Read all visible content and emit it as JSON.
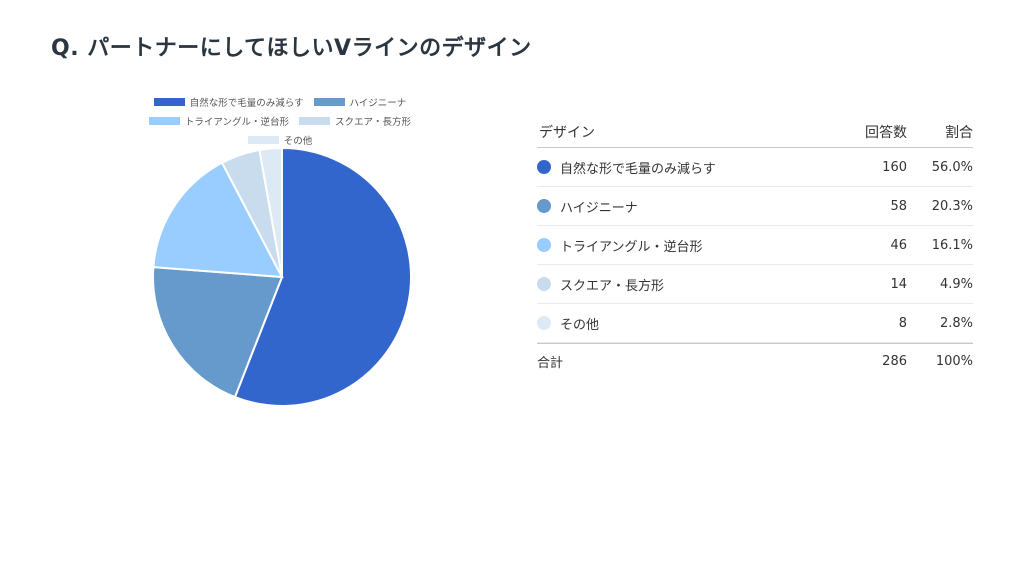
{
  "title": "Q. パートナーにしてほしいVラインのデザイン",
  "chart_data": {
    "type": "pie",
    "title": "",
    "categories": [
      "自然な形で毛量のみ減らす",
      "ハイジニーナ",
      "トライアングル・逆台形",
      "スクエア・長方形",
      "その他"
    ],
    "values": [
      160,
      58,
      46,
      14,
      8
    ],
    "percentages": [
      "56.0%",
      "20.3%",
      "16.1%",
      "4.9%",
      "2.8%"
    ],
    "colors": [
      "#3366cc",
      "#6699cc",
      "#99ccff",
      "#c8dcee",
      "#ddeaf6"
    ],
    "legend_position": "top"
  },
  "table": {
    "header": {
      "label": "デザイン",
      "count": "回答数",
      "pct": "割合"
    },
    "rows": [
      {
        "label": "自然な形で毛量のみ減らす",
        "count": "160",
        "pct": "56.0%",
        "color": "#3366cc"
      },
      {
        "label": "ハイジニーナ",
        "count": "58",
        "pct": "20.3%",
        "color": "#6699cc"
      },
      {
        "label": "トライアングル・逆台形",
        "count": "46",
        "pct": "16.1%",
        "color": "#99ccff"
      },
      {
        "label": "スクエア・長方形",
        "count": "14",
        "pct": "4.9%",
        "color": "#c8dcee"
      },
      {
        "label": "その他",
        "count": "8",
        "pct": "2.8%",
        "color": "#ddeaf6"
      }
    ],
    "total": {
      "label": "合計",
      "count": "286",
      "pct": "100%"
    }
  }
}
